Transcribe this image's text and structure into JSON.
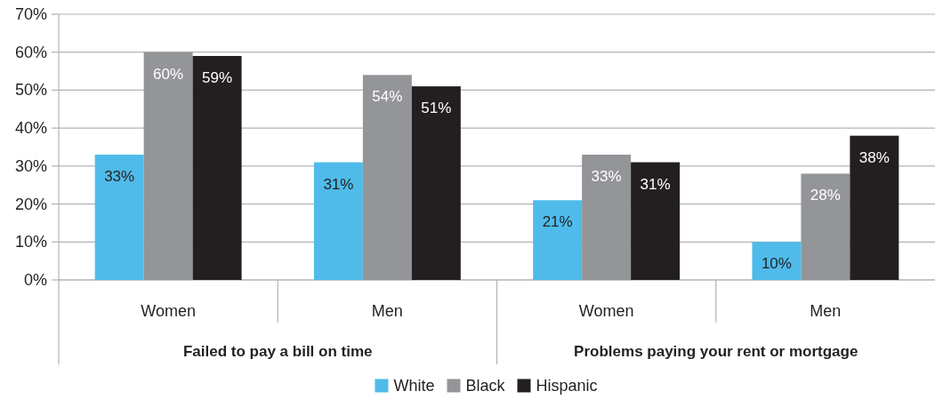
{
  "chart_data": {
    "type": "bar",
    "categories": [
      "Women",
      "Men",
      "Women",
      "Men"
    ],
    "annotations": [
      "Failed to pay a bill on time",
      "Problems paying your rent or mortgage"
    ],
    "series": [
      {
        "name": "White",
        "color": "#4fbbea",
        "values": [
          33,
          31,
          21,
          10
        ],
        "value_labels": [
          "33%",
          "31%",
          "21%",
          "10%"
        ]
      },
      {
        "name": "Black",
        "color": "#939598",
        "values": [
          60,
          54,
          33,
          28
        ],
        "value_labels": [
          "60%",
          "54%",
          "33%",
          "28%"
        ]
      },
      {
        "name": "Hispanic",
        "color": "#231f20",
        "values": [
          59,
          51,
          31,
          38
        ],
        "value_labels": [
          "59%",
          "51%",
          "31%",
          "38%"
        ]
      }
    ],
    "ylim": [
      0,
      70
    ],
    "yticks": [
      {
        "value": 0,
        "label": "0%"
      },
      {
        "value": 10,
        "label": "10%"
      },
      {
        "value": 20,
        "label": "20%"
      },
      {
        "value": 30,
        "label": "30%"
      },
      {
        "value": 40,
        "label": "40%"
      },
      {
        "value": 50,
        "label": "50%"
      },
      {
        "value": 60,
        "label": "60%"
      },
      {
        "value": 70,
        "label": "70%"
      }
    ],
    "grid": "y",
    "legend": "bottom"
  }
}
